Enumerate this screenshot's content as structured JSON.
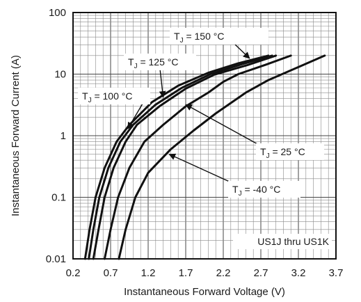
{
  "chart_data": {
    "type": "line",
    "title": "",
    "xlabel": "Instantaneous Forward Voltage (V)",
    "ylabel": "Instantaneous Forward Current (A)",
    "xlim": [
      0.2,
      3.7
    ],
    "ylim": [
      0.01,
      100
    ],
    "yscale": "log",
    "x_ticks": [
      "0.2",
      "0.7",
      "1.2",
      "1.7",
      "2.2",
      "2.7",
      "3.2",
      "3.7"
    ],
    "y_ticks": [
      "0.01",
      "0.1",
      "1",
      "10",
      "100"
    ],
    "grid": true,
    "note": "US1J thru US1K",
    "series": [
      {
        "name": "TJ = 150 °C",
        "label_main": "T",
        "label_sub": "J",
        "label_rest": " = 150 °C",
        "x": [
          0.36,
          0.42,
          0.5,
          0.62,
          0.78,
          0.95,
          1.25,
          1.6,
          2.0,
          2.4,
          2.8
        ],
        "y": [
          0.01,
          0.03,
          0.1,
          0.3,
          0.8,
          1.5,
          3.5,
          6.5,
          10.5,
          15,
          20
        ]
      },
      {
        "name": "TJ = 125 °C",
        "label_main": "T",
        "label_sub": "J",
        "label_rest": " = 125 °C",
        "x": [
          0.41,
          0.47,
          0.55,
          0.67,
          0.83,
          1.0,
          1.3,
          1.65,
          2.03,
          2.45,
          2.85
        ],
        "y": [
          0.01,
          0.03,
          0.1,
          0.3,
          0.8,
          1.5,
          3.2,
          6.0,
          10.0,
          14.5,
          20
        ]
      },
      {
        "name": "TJ = 100 °C",
        "label_main": "T",
        "label_sub": "J",
        "label_rest": " = 100 °C",
        "x": [
          0.47,
          0.54,
          0.62,
          0.74,
          0.9,
          1.05,
          1.35,
          1.7,
          2.08,
          2.52,
          2.9
        ],
        "y": [
          0.01,
          0.03,
          0.1,
          0.3,
          0.8,
          1.5,
          3.0,
          5.8,
          9.8,
          14,
          20
        ]
      },
      {
        "name": "TJ = 25 °C",
        "label_main": "T",
        "label_sub": "J",
        "label_rest": " = 25 °C",
        "x": [
          0.62,
          0.7,
          0.8,
          0.95,
          1.15,
          1.4,
          1.7,
          2.0,
          2.2,
          2.4,
          2.75,
          3.1
        ],
        "y": [
          0.01,
          0.03,
          0.1,
          0.3,
          0.8,
          1.5,
          3.0,
          5.0,
          7.5,
          10,
          14,
          20
        ]
      },
      {
        "name": "TJ = -40 °C",
        "label_main": "T",
        "label_sub": "J",
        "label_rest": " = -40 °C",
        "x": [
          0.81,
          0.9,
          1.03,
          1.2,
          1.5,
          1.8,
          2.1,
          2.5,
          2.8,
          3.2,
          3.55
        ],
        "y": [
          0.01,
          0.03,
          0.1,
          0.25,
          0.6,
          1.2,
          2.3,
          5.0,
          8.0,
          13,
          20
        ]
      }
    ],
    "annotations": [
      {
        "series": 0,
        "at_x": 2.55,
        "at_y": 18
      },
      {
        "series": 1,
        "at_x": 1.4,
        "at_y": 4.2
      },
      {
        "series": 2,
        "at_x": 0.93,
        "at_y": 1.3
      },
      {
        "series": 3,
        "at_x": 1.7,
        "at_y": 3.2
      },
      {
        "series": 4,
        "at_x": 1.48,
        "at_y": 0.5
      }
    ]
  }
}
